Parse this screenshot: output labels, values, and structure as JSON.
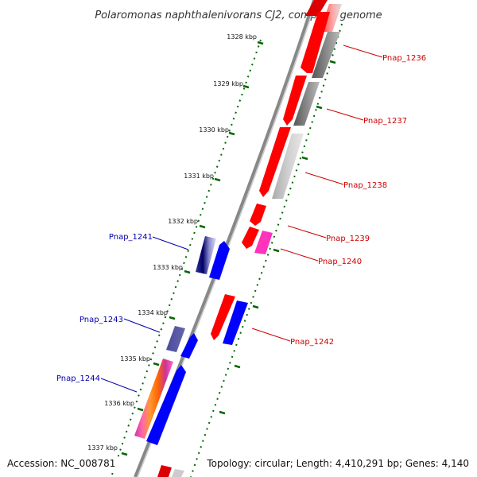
{
  "title": "Polaromonas naphthalenivorans CJ2, complete genome",
  "accession": "Accession: NC_008781",
  "topology": "Topology: circular; Length: 4,410,291 bp; Genes: 4,140",
  "ticks": [
    "1328 kbp",
    "1329 kbp",
    "1330 kbp",
    "1331 kbp",
    "1332 kbp",
    "1333 kbp",
    "1334 kbp",
    "1335 kbp",
    "1336 kbp",
    "1337 kbp"
  ],
  "genes": [
    {
      "name": "Pnap_1236",
      "strand": "right",
      "color": "#cc0000"
    },
    {
      "name": "Pnap_1237",
      "strand": "right",
      "color": "#cc0000"
    },
    {
      "name": "Pnap_1238",
      "strand": "right",
      "color": "#cc0000"
    },
    {
      "name": "Pnap_1239",
      "strand": "right",
      "color": "#cc0000"
    },
    {
      "name": "Pnap_1240",
      "strand": "right",
      "color": "#cc0000"
    },
    {
      "name": "Pnap_1241",
      "strand": "left",
      "color": "#0000aa"
    },
    {
      "name": "Pnap_1242",
      "strand": "right",
      "color": "#cc0000"
    },
    {
      "name": "Pnap_1243",
      "strand": "left",
      "color": "#0000aa"
    },
    {
      "name": "Pnap_1244",
      "strand": "left",
      "color": "#0000aa"
    }
  ]
}
